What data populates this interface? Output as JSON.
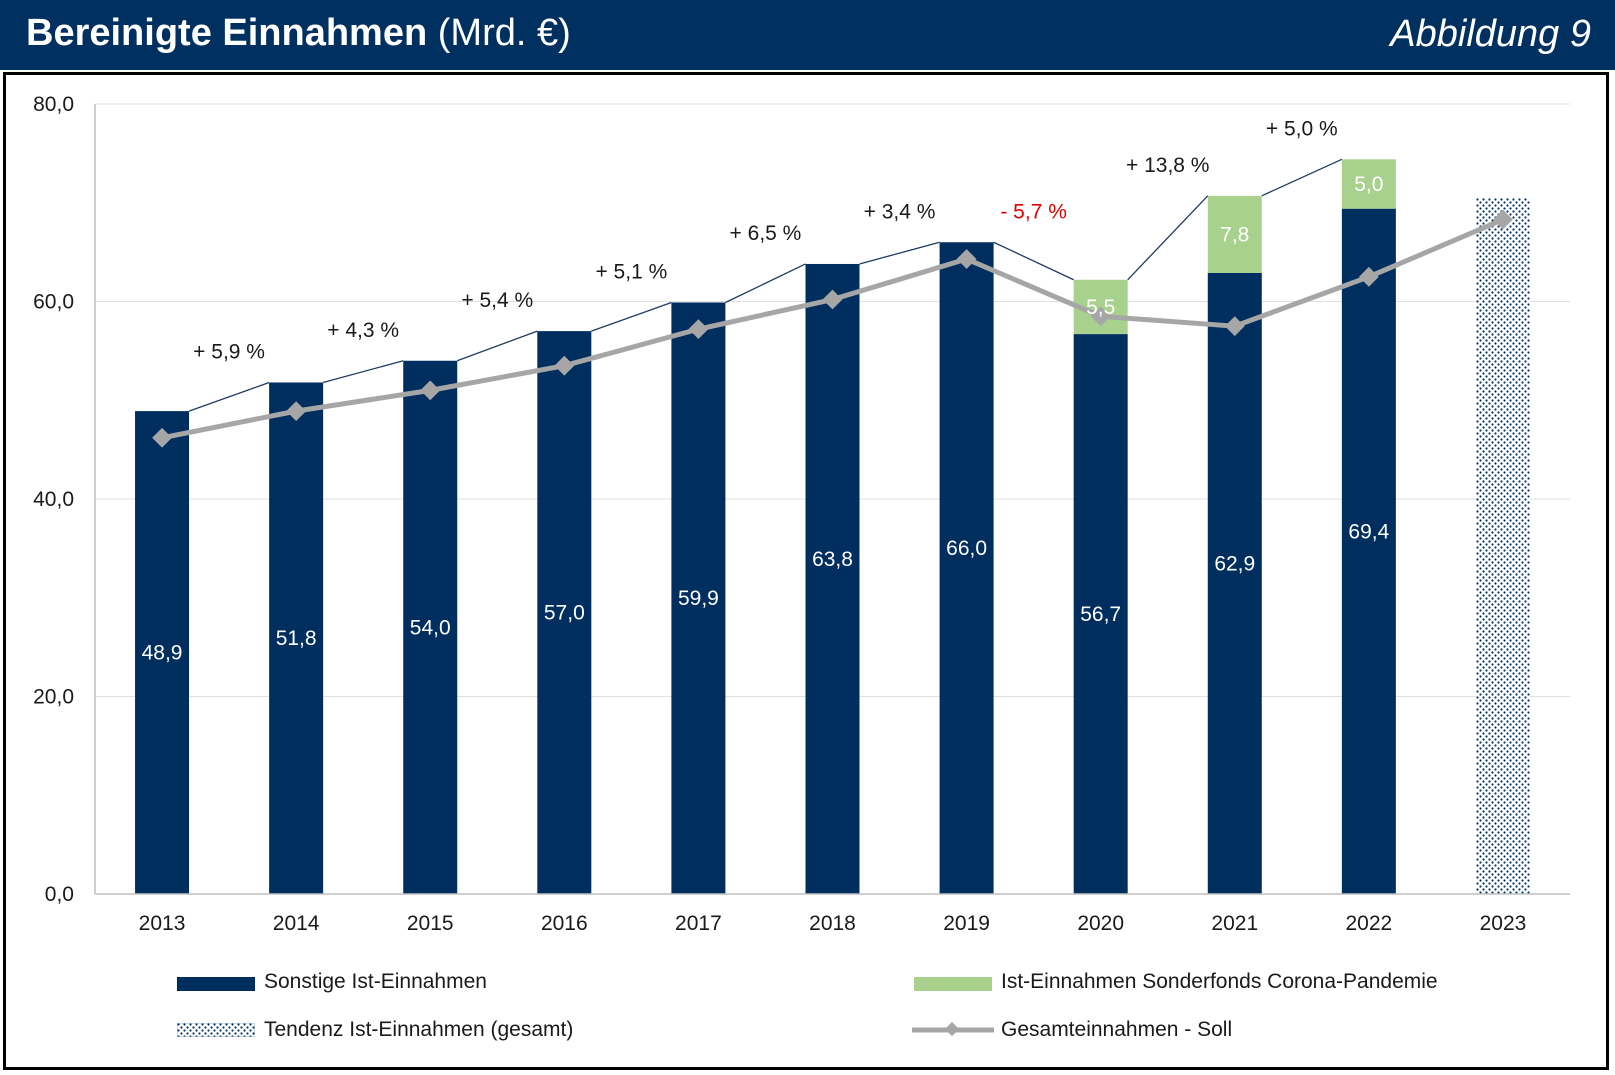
{
  "header": {
    "title_bold": "Bereinigte Einnahmen",
    "title_unit": "(Mrd. €)",
    "figure_label": "Abbildung 9"
  },
  "colors": {
    "header_bg": "#00305f",
    "bar_main": "#002e5f",
    "bar_corona": "#a9d18e",
    "line_soll": "#a6a6a6",
    "negative_text": "#e00000"
  },
  "chart_data": {
    "type": "bar",
    "stacked": true,
    "title": "Bereinigte Einnahmen (Mrd. €)",
    "categories": [
      "2013",
      "2014",
      "2015",
      "2016",
      "2017",
      "2018",
      "2019",
      "2020",
      "2021",
      "2022",
      "2023"
    ],
    "ylim": [
      0,
      80
    ],
    "yticks": [
      "0,0",
      "20,0",
      "40,0",
      "60,0",
      "80,0"
    ],
    "ytick_values": [
      0,
      20,
      40,
      60,
      80
    ],
    "grid": true,
    "series": [
      {
        "name": "Sonstige Ist-Einnahmen",
        "type": "bar",
        "values": [
          48.9,
          51.8,
          54.0,
          57.0,
          59.9,
          63.8,
          66.0,
          56.7,
          62.9,
          69.4,
          null
        ],
        "labels": [
          "48,9",
          "51,8",
          "54,0",
          "57,0",
          "59,9",
          "63,8",
          "66,0",
          "56,7",
          "62,9",
          "69,4",
          ""
        ]
      },
      {
        "name": "Ist-Einnahmen Sonderfonds Corona-Pandemie",
        "type": "bar",
        "values": [
          null,
          null,
          null,
          null,
          null,
          null,
          null,
          5.5,
          7.8,
          5.0,
          null
        ],
        "labels": [
          "",
          "",
          "",
          "",
          "",
          "",
          "",
          "5,5",
          "7,8",
          "5,0",
          ""
        ]
      },
      {
        "name": "Tendenz Ist-Einnahmen (gesamt)",
        "type": "bar-pattern",
        "values": [
          null,
          null,
          null,
          null,
          null,
          null,
          null,
          null,
          null,
          null,
          70.5
        ]
      },
      {
        "name": "Gesamteinnahmen - Soll",
        "type": "line",
        "values": [
          46.2,
          48.9,
          51.0,
          53.5,
          57.2,
          60.2,
          64.3,
          58.5,
          57.5,
          62.5,
          68.3
        ]
      }
    ],
    "change_labels": [
      "+ 5,9 %",
      "+ 4,3 %",
      "+ 5,4 %",
      "+ 5,1 %",
      "+ 6,5 %",
      "+ 3,4 %",
      "- 5,7 %",
      "+ 13,8 %",
      "+ 5,0 %"
    ],
    "change_negative": [
      false,
      false,
      false,
      false,
      false,
      false,
      true,
      false,
      false
    ],
    "legend": [
      {
        "label": "Sonstige Ist-Einnahmen",
        "swatch": "bar_main"
      },
      {
        "label": "Ist-Einnahmen Sonderfonds Corona-Pandemie",
        "swatch": "bar_corona"
      },
      {
        "label": "Tendenz Ist-Einnahmen (gesamt)",
        "swatch": "pattern"
      },
      {
        "label": "Gesamteinnahmen - Soll",
        "swatch": "line"
      }
    ]
  }
}
